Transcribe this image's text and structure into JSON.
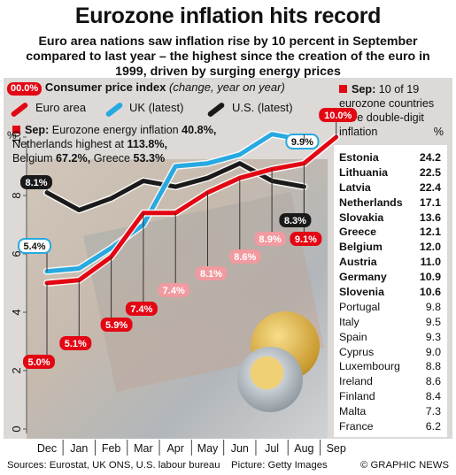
{
  "title": "Eurozone inflation hits record",
  "subtitle": "Euro area nations saw inflation rise by 10 percent in September compared to last year – the highest since the creation of the euro in 1999, driven by surging energy prices",
  "legend": {
    "tag": "00.0%",
    "heading": "Consumer price index",
    "heading_note": "(change, year on year)",
    "euro": "Euro area",
    "uk": "UK (latest)",
    "us": "U.S. (latest)"
  },
  "note": {
    "lead": "Sep:",
    "line1_text": "Eurozone energy inflation",
    "line1_value": "40.8%,",
    "line2_text": "Netherlands highest at",
    "line2_value": "113.8%,",
    "line3_a": "Belgium",
    "line3_a_value": "67.2%,",
    "line3_b": "Greece",
    "line3_b_value": "53.3%"
  },
  "table": {
    "lead": "Sep:",
    "intro": "10 of 19 eurozone countries have double-digit inflation",
    "unit": "%",
    "rows": [
      {
        "country": "Estonia",
        "value": "24.2"
      },
      {
        "country": "Lithuania",
        "value": "22.5"
      },
      {
        "country": "Latvia",
        "value": "22.4"
      },
      {
        "country": "Netherlands",
        "value": "17.1"
      },
      {
        "country": "Slovakia",
        "value": "13.6"
      },
      {
        "country": "Greece",
        "value": "12.1"
      },
      {
        "country": "Belgium",
        "value": "12.0"
      },
      {
        "country": "Austria",
        "value": "11.0"
      },
      {
        "country": "Germany",
        "value": "10.9"
      },
      {
        "country": "Slovenia",
        "value": "10.6"
      },
      {
        "country": "Portugal",
        "value": "9.8"
      },
      {
        "country": "Italy",
        "value": "9.5"
      },
      {
        "country": "Spain",
        "value": "9.3"
      },
      {
        "country": "Cyprus",
        "value": "9.0"
      },
      {
        "country": "Luxembourg",
        "value": "8.8"
      },
      {
        "country": "Ireland",
        "value": "8.6"
      },
      {
        "country": "Finland",
        "value": "8.4"
      },
      {
        "country": "Malta",
        "value": "7.3"
      },
      {
        "country": "France",
        "value": "6.2"
      }
    ]
  },
  "colors": {
    "euro": "#e30613",
    "uk": "#27a9e1",
    "us": "#1a1a1a",
    "pink": "#f19aa0",
    "panel": "#dcd9d6"
  },
  "chart_data": {
    "type": "line",
    "ylabel": "%",
    "ylim": [
      0,
      10
    ],
    "yticks": [
      0,
      2,
      4,
      6,
      8,
      10
    ],
    "categories": [
      "Dec",
      "Jan",
      "Feb",
      "Mar",
      "Apr",
      "May",
      "Jun",
      "Jul",
      "Aug",
      "Sep"
    ],
    "grid": false,
    "series": [
      {
        "name": "Euro area",
        "color": "#e30613",
        "values": [
          5.0,
          5.1,
          5.9,
          7.4,
          7.4,
          8.1,
          8.6,
          8.9,
          9.1,
          10.0
        ]
      },
      {
        "name": "UK (latest)",
        "color": "#27a9e1",
        "values": [
          5.4,
          5.5,
          6.2,
          7.0,
          9.0,
          9.1,
          9.4,
          10.1,
          9.9,
          null
        ]
      },
      {
        "name": "U.S. (latest)",
        "color": "#1a1a1a",
        "values": [
          8.1,
          7.5,
          7.9,
          8.5,
          8.3,
          8.6,
          9.1,
          8.5,
          8.3,
          null
        ]
      }
    ],
    "labels": [
      {
        "series": 0,
        "index": 0,
        "text": "5.0%",
        "style": "red"
      },
      {
        "series": 0,
        "index": 1,
        "text": "5.1%",
        "style": "red"
      },
      {
        "series": 0,
        "index": 2,
        "text": "5.9%",
        "style": "red"
      },
      {
        "series": 0,
        "index": 3,
        "text": "7.4%",
        "style": "red"
      },
      {
        "series": 0,
        "index": 4,
        "text": "7.4%",
        "style": "pink"
      },
      {
        "series": 0,
        "index": 5,
        "text": "8.1%",
        "style": "pink"
      },
      {
        "series": 0,
        "index": 6,
        "text": "8.6%",
        "style": "pink"
      },
      {
        "series": 0,
        "index": 7,
        "text": "8.9%",
        "style": "pink"
      },
      {
        "series": 0,
        "index": 8,
        "text": "9.1%",
        "style": "red"
      },
      {
        "series": 0,
        "index": 9,
        "text": "10.0%",
        "style": "red"
      },
      {
        "series": 1,
        "index": 0,
        "text": "5.4%",
        "style": "blue"
      },
      {
        "series": 1,
        "index": 8,
        "text": "9.9%",
        "style": "blue"
      },
      {
        "series": 2,
        "index": 0,
        "text": "8.1%",
        "style": "black"
      },
      {
        "series": 2,
        "index": 8,
        "text": "8.3%",
        "style": "black"
      }
    ]
  },
  "footer": {
    "sources": "Sources: Eurostat, UK ONS, U.S. labour bureau",
    "picture": "Picture: Getty Images",
    "credit": "© GRAPHIC NEWS"
  }
}
